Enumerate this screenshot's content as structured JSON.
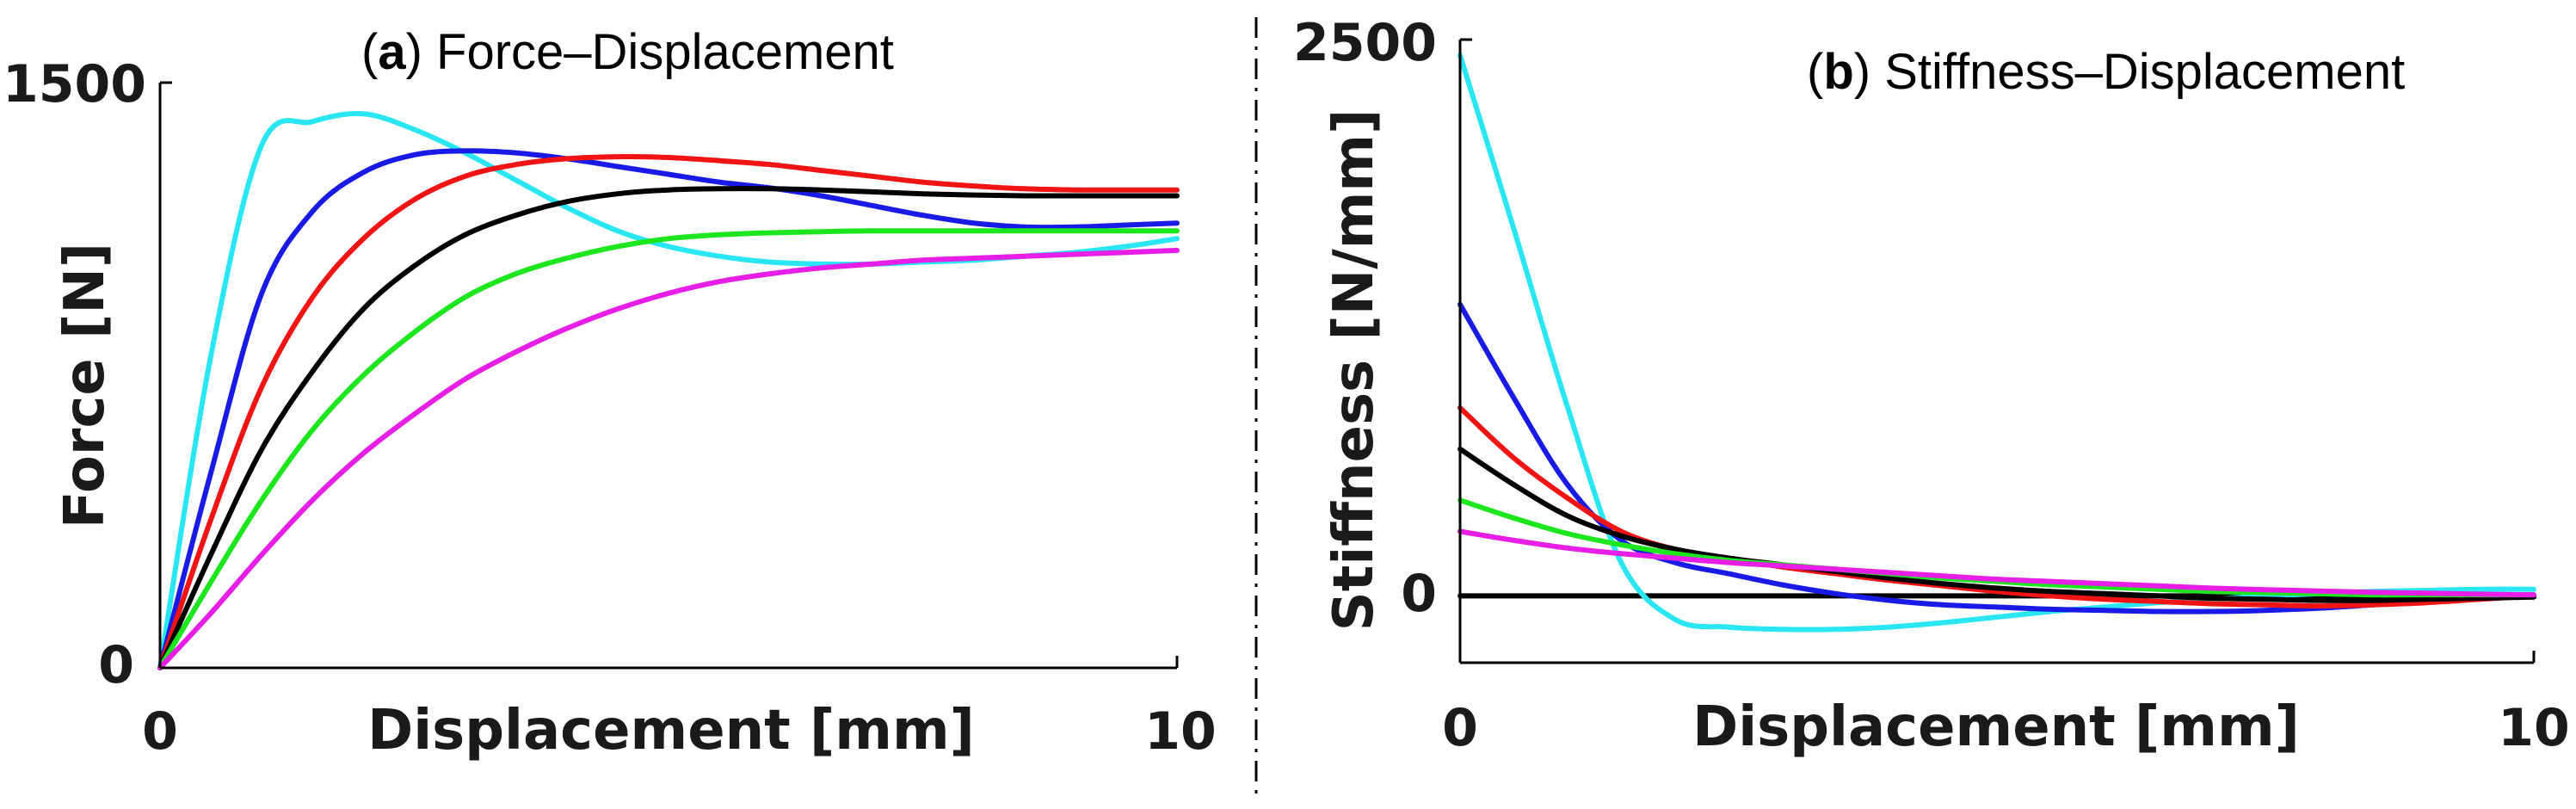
{
  "chart_data": [
    {
      "type": "line",
      "panel_letter": "a",
      "title": "Force–Displacement",
      "xlabel": "Displacement [mm]",
      "ylabel": "Force [N]",
      "xlim": [
        0,
        10
      ],
      "ylim": [
        0,
        1500
      ],
      "xticks": [
        "0",
        "10"
      ],
      "yticks": [
        "0",
        "1500"
      ],
      "x": [
        0,
        0.5,
        1,
        1.5,
        2,
        2.5,
        3,
        3.5,
        4,
        4.5,
        5,
        5.5,
        6,
        6.5,
        7,
        7.5,
        8,
        8.5,
        9,
        9.5,
        10
      ],
      "series": [
        {
          "name": "cyan",
          "color": "#29e6f2",
          "values": [
            0,
            800,
            1340,
            1400,
            1420,
            1380,
            1320,
            1250,
            1180,
            1120,
            1080,
            1055,
            1040,
            1035,
            1035,
            1040,
            1045,
            1055,
            1065,
            1080,
            1100
          ]
        },
        {
          "name": "blue",
          "color": "#1a1ae6",
          "values": [
            0,
            500,
            960,
            1170,
            1270,
            1315,
            1325,
            1320,
            1305,
            1285,
            1265,
            1245,
            1230,
            1210,
            1185,
            1160,
            1140,
            1130,
            1130,
            1135,
            1140
          ]
        },
        {
          "name": "red",
          "color": "#f01414",
          "values": [
            0,
            380,
            720,
            950,
            1100,
            1200,
            1260,
            1290,
            1305,
            1310,
            1308,
            1300,
            1290,
            1275,
            1260,
            1245,
            1235,
            1228,
            1225,
            1225,
            1225
          ]
        },
        {
          "name": "black",
          "color": "#000000",
          "values": [
            0,
            290,
            560,
            760,
            920,
            1030,
            1110,
            1160,
            1195,
            1215,
            1225,
            1228,
            1228,
            1225,
            1220,
            1215,
            1212,
            1210,
            1210,
            1210,
            1210
          ]
        },
        {
          "name": "green",
          "color": "#1ee61e",
          "values": [
            0,
            220,
            430,
            610,
            750,
            860,
            950,
            1010,
            1050,
            1080,
            1100,
            1110,
            1115,
            1118,
            1120,
            1120,
            1120,
            1120,
            1120,
            1120,
            1120
          ]
        },
        {
          "name": "magenta",
          "color": "#e61ee6",
          "values": [
            0,
            140,
            290,
            430,
            550,
            650,
            740,
            810,
            870,
            920,
            960,
            990,
            1010,
            1025,
            1035,
            1045,
            1050,
            1055,
            1060,
            1065,
            1070
          ]
        }
      ]
    },
    {
      "type": "line",
      "panel_letter": "b",
      "title": "Stiffness–Displacement",
      "xlabel": "Displacement [mm]",
      "ylabel": "Stiffness [N/mm]",
      "xlim": [
        0,
        10
      ],
      "ylim": [
        -300,
        2500
      ],
      "xticks": [
        "0",
        "10"
      ],
      "yticks": [
        "0",
        "2500"
      ],
      "x": [
        0,
        0.5,
        1,
        1.5,
        2,
        2.5,
        3,
        3.5,
        4,
        4.5,
        5,
        5.5,
        6,
        6.5,
        7,
        7.5,
        8,
        8.5,
        9,
        9.5,
        10
      ],
      "series": [
        {
          "name": "zero",
          "color": "#000000",
          "values": [
            0,
            0,
            0,
            0,
            0,
            0,
            0,
            0,
            0,
            0,
            0,
            0,
            0,
            0,
            0,
            0,
            0,
            0,
            0,
            0,
            0
          ]
        },
        {
          "name": "cyan",
          "color": "#29e6f2",
          "values": [
            2430,
            1650,
            850,
            150,
            -105,
            -140,
            -150,
            -150,
            -140,
            -120,
            -95,
            -70,
            -50,
            -30,
            -15,
            0,
            10,
            20,
            25,
            30,
            30
          ]
        },
        {
          "name": "blue",
          "color": "#1a1ae6",
          "values": [
            1310,
            890,
            500,
            250,
            150,
            100,
            50,
            10,
            -20,
            -40,
            -50,
            -60,
            -65,
            -70,
            -70,
            -65,
            -55,
            -40,
            -25,
            -10,
            0
          ]
        },
        {
          "name": "red",
          "color": "#f01414",
          "values": [
            845,
            620,
            440,
            290,
            210,
            170,
            130,
            100,
            70,
            45,
            20,
            0,
            -15,
            -25,
            -35,
            -40,
            -45,
            -40,
            -30,
            -15,
            0
          ]
        },
        {
          "name": "black",
          "color": "#000000",
          "values": [
            660,
            500,
            360,
            270,
            210,
            170,
            140,
            110,
            80,
            55,
            35,
            20,
            10,
            0,
            -10,
            -15,
            -20,
            -20,
            -15,
            -10,
            -5
          ]
        },
        {
          "name": "green",
          "color": "#1ee61e",
          "values": [
            430,
            350,
            280,
            230,
            190,
            160,
            140,
            120,
            100,
            80,
            65,
            50,
            40,
            30,
            20,
            15,
            10,
            5,
            5,
            5,
            5
          ]
        },
        {
          "name": "magenta",
          "color": "#e61ee6",
          "values": [
            290,
            250,
            215,
            190,
            170,
            150,
            135,
            120,
            105,
            90,
            75,
            65,
            55,
            45,
            35,
            28,
            22,
            16,
            12,
            8,
            5
          ]
        }
      ]
    }
  ]
}
